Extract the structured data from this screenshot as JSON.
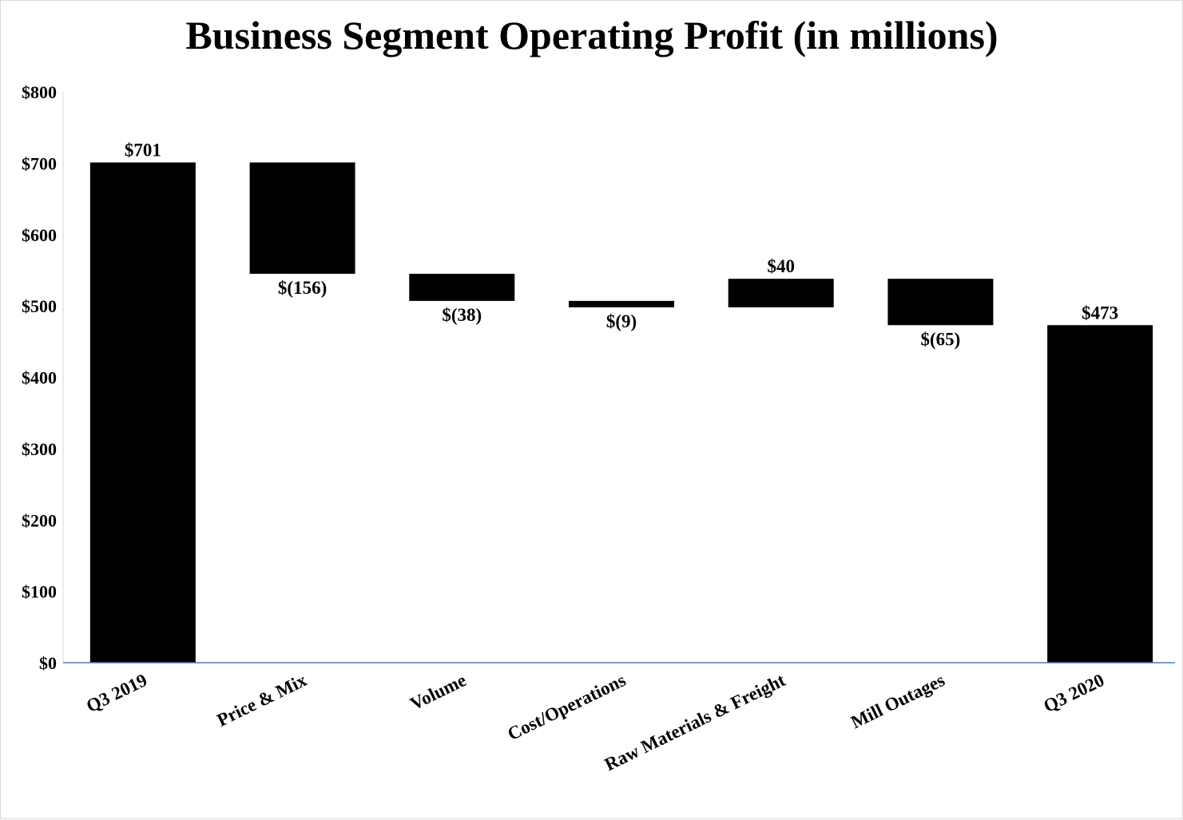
{
  "chart_data": {
    "type": "bar",
    "subtype": "waterfall",
    "title": "Business Segment Operating Profit (in millions)",
    "xlabel": "",
    "ylabel": "",
    "ylim": [
      0,
      800
    ],
    "yticks": [
      0,
      100,
      200,
      300,
      400,
      500,
      600,
      700,
      800
    ],
    "ytick_labels": [
      "$0",
      "$100",
      "$200",
      "$300",
      "$400",
      "$500",
      "$600",
      "$700",
      "$800"
    ],
    "grid": false,
    "legend": "none",
    "categories": [
      "Q3 2019",
      "Price & Mix",
      "Volume",
      "Cost/Operations",
      "Raw Materials & Freight",
      "Mill Outages",
      "Q3 2020"
    ],
    "values": [
      701,
      -156,
      -38,
      -9,
      40,
      -65,
      473
    ],
    "kinds": [
      "total",
      "delta",
      "delta",
      "delta",
      "delta",
      "delta",
      "total"
    ],
    "data_labels": [
      "$701",
      "$(156)",
      "$(38)",
      "$(9)",
      "$40",
      "$(65)",
      "$473"
    ],
    "colors": {
      "bar": "#000000",
      "axis": "#4a7ebb",
      "text": "#000000"
    }
  }
}
